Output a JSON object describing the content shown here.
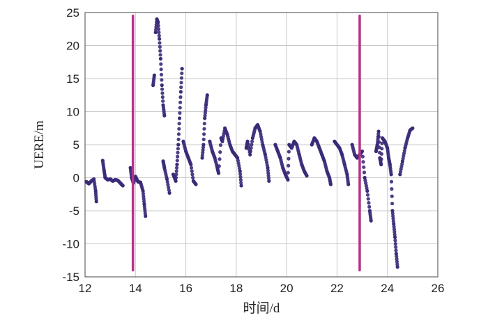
{
  "chart_data": {
    "type": "scatter",
    "title": "",
    "xlabel": "时间/d",
    "ylabel": "UERE/m",
    "xlim": [
      12,
      26
    ],
    "ylim": [
      -15,
      25
    ],
    "xticks": [
      "12",
      "14",
      "16",
      "18",
      "20",
      "22",
      "24",
      "26"
    ],
    "yticks": [
      "25",
      "20",
      "15",
      "10",
      "5",
      "0",
      "-5",
      "-10",
      "-15"
    ],
    "grid": true,
    "colors": {
      "points": "#3b2a78",
      "markers": "#b5338a",
      "grid": "#c8c8c8",
      "axis": "#444444"
    },
    "vertical_markers": [
      {
        "x": 13.9,
        "y_from": -14,
        "y_to": 24.5
      },
      {
        "x": 22.9,
        "y_from": -14,
        "y_to": 24.5
      }
    ],
    "series": [
      {
        "points": [
          [
            12.05,
            -0.6
          ],
          [
            12.15,
            -0.9
          ],
          [
            12.25,
            -0.5
          ],
          [
            12.35,
            -0.2
          ],
          [
            12.42,
            -2.0
          ],
          [
            12.45,
            -3.6
          ],
          [
            12.7,
            2.6
          ],
          [
            12.75,
            1.2
          ],
          [
            12.8,
            0.0
          ],
          [
            12.9,
            -0.3
          ],
          [
            13.0,
            -0.2
          ],
          [
            13.1,
            -0.5
          ],
          [
            13.2,
            -0.3
          ],
          [
            13.3,
            -0.4
          ],
          [
            13.4,
            -0.8
          ],
          [
            13.5,
            -1.2
          ],
          [
            13.8,
            1.5
          ],
          [
            13.85,
            0.0
          ],
          [
            13.92,
            -0.8
          ],
          [
            14.0,
            0.2
          ],
          [
            14.1,
            -0.6
          ],
          [
            14.2,
            -0.7
          ],
          [
            14.3,
            -2.0
          ],
          [
            14.35,
            -4.0
          ],
          [
            14.4,
            -5.8
          ],
          [
            14.7,
            14.0
          ],
          [
            14.75,
            15.5
          ],
          [
            14.8,
            22.0
          ],
          [
            14.85,
            24.0
          ],
          [
            14.9,
            23.5
          ],
          [
            14.95,
            21.0
          ],
          [
            15.0,
            18.0
          ],
          [
            15.05,
            14.0
          ],
          [
            15.1,
            11.0
          ],
          [
            15.15,
            9.4
          ],
          [
            15.1,
            2.5
          ],
          [
            15.15,
            1.5
          ],
          [
            15.25,
            -0.2
          ],
          [
            15.35,
            -2.3
          ],
          [
            15.5,
            0.5
          ],
          [
            15.6,
            -0.5
          ],
          [
            15.65,
            2.0
          ],
          [
            15.7,
            5.0
          ],
          [
            15.75,
            9.0
          ],
          [
            15.8,
            13.0
          ],
          [
            15.85,
            16.5
          ],
          [
            15.9,
            5.5
          ],
          [
            16.0,
            4.0
          ],
          [
            16.1,
            3.0
          ],
          [
            16.2,
            2.0
          ],
          [
            16.3,
            -0.5
          ],
          [
            16.4,
            -1.0
          ],
          [
            16.65,
            3.0
          ],
          [
            16.7,
            5.0
          ],
          [
            16.75,
            9.0
          ],
          [
            16.8,
            11.0
          ],
          [
            16.85,
            12.5
          ],
          [
            16.95,
            5.5
          ],
          [
            17.05,
            4.0
          ],
          [
            17.15,
            3.0
          ],
          [
            17.25,
            1.5
          ],
          [
            17.3,
            0.7
          ],
          [
            17.4,
            6.0
          ],
          [
            17.45,
            5.5
          ],
          [
            17.55,
            7.5
          ],
          [
            17.65,
            6.5
          ],
          [
            17.75,
            5.0
          ],
          [
            17.85,
            4.0
          ],
          [
            17.95,
            3.5
          ],
          [
            18.05,
            3.0
          ],
          [
            18.15,
            1.0
          ],
          [
            18.2,
            -1.2
          ],
          [
            18.4,
            4.5
          ],
          [
            18.45,
            5.5
          ],
          [
            18.55,
            3.5
          ],
          [
            18.65,
            6.0
          ],
          [
            18.75,
            7.5
          ],
          [
            18.85,
            8.0
          ],
          [
            18.95,
            7.0
          ],
          [
            19.05,
            5.0
          ],
          [
            19.15,
            3.5
          ],
          [
            19.25,
            1.5
          ],
          [
            19.3,
            -0.5
          ],
          [
            19.55,
            5.0
          ],
          [
            19.65,
            4.0
          ],
          [
            19.75,
            3.0
          ],
          [
            19.85,
            1.5
          ],
          [
            19.95,
            0.5
          ],
          [
            20.05,
            -0.3
          ],
          [
            20.1,
            5.0
          ],
          [
            20.2,
            4.5
          ],
          [
            20.3,
            5.5
          ],
          [
            20.4,
            5.0
          ],
          [
            20.5,
            3.5
          ],
          [
            20.6,
            2.0
          ],
          [
            20.7,
            1.0
          ],
          [
            20.8,
            0.3
          ],
          [
            21.0,
            5.0
          ],
          [
            21.1,
            6.0
          ],
          [
            21.2,
            5.5
          ],
          [
            21.3,
            4.5
          ],
          [
            21.4,
            3.5
          ],
          [
            21.5,
            2.5
          ],
          [
            21.6,
            1.0
          ],
          [
            21.7,
            0.0
          ],
          [
            21.75,
            -1.0
          ],
          [
            21.9,
            5.5
          ],
          [
            22.0,
            5.0
          ],
          [
            22.1,
            4.5
          ],
          [
            22.2,
            3.5
          ],
          [
            22.3,
            2.0
          ],
          [
            22.4,
            0.5
          ],
          [
            22.45,
            -1.0
          ],
          [
            22.6,
            5.0
          ],
          [
            22.7,
            3.5
          ],
          [
            22.8,
            3.0
          ],
          [
            22.9,
            3.5
          ],
          [
            23.0,
            4.0
          ],
          [
            23.1,
            0.0
          ],
          [
            23.2,
            -2.0
          ],
          [
            23.3,
            -5.0
          ],
          [
            23.35,
            -6.5
          ],
          [
            23.55,
            4.0
          ],
          [
            23.6,
            5.0
          ],
          [
            23.65,
            7.0
          ],
          [
            23.7,
            3.0
          ],
          [
            23.75,
            2.0
          ],
          [
            23.8,
            6.0
          ],
          [
            23.9,
            5.5
          ],
          [
            24.0,
            4.5
          ],
          [
            24.05,
            3.0
          ],
          [
            24.1,
            2.0
          ],
          [
            24.15,
            0.5
          ],
          [
            24.2,
            -5.0
          ],
          [
            24.25,
            -7.0
          ],
          [
            24.3,
            -9.0
          ],
          [
            24.35,
            -11.5
          ],
          [
            24.4,
            -13.5
          ],
          [
            24.5,
            0.5
          ],
          [
            24.6,
            2.5
          ],
          [
            24.7,
            4.5
          ],
          [
            24.8,
            6.0
          ],
          [
            24.9,
            7.2
          ],
          [
            25.0,
            7.5
          ]
        ]
      }
    ]
  }
}
